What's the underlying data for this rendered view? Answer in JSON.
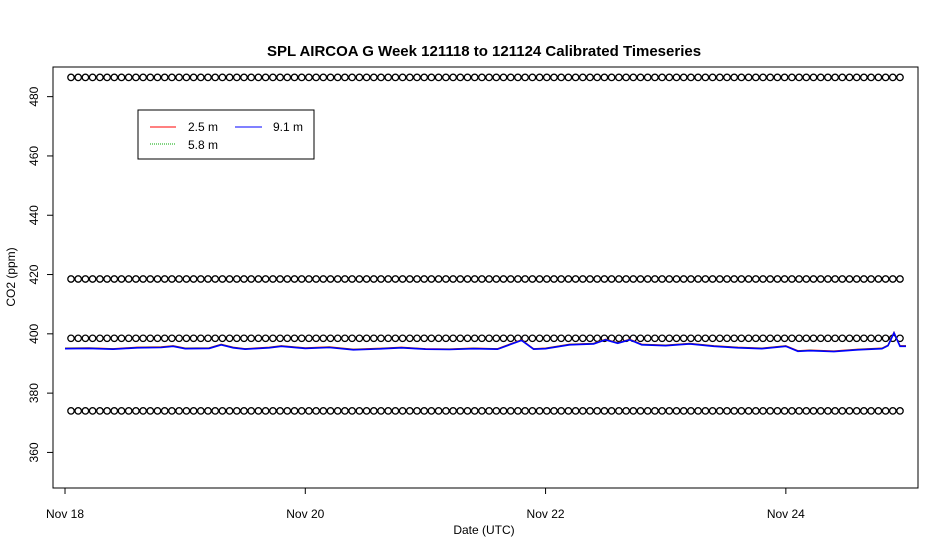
{
  "chart_data": {
    "type": "line",
    "title": "SPL AIRCOA G  Week 121118 to 121124  Calibrated Timeseries",
    "xlabel": "Date (UTC)",
    "ylabel": "CO2 (ppm)",
    "x_unit": "days since Nov 18 00:00 UTC",
    "xlim": [
      -0.1,
      7.1
    ],
    "ylim": [
      348,
      490
    ],
    "x_ticks": [
      0,
      2,
      4,
      6
    ],
    "x_tick_labels": [
      "Nov 18",
      "Nov 20",
      "Nov 22",
      "Nov 24"
    ],
    "y_ticks": [
      360,
      380,
      400,
      420,
      440,
      460,
      480
    ],
    "y_tick_labels": [
      "360",
      "380",
      "400",
      "420",
      "440",
      "460",
      "480"
    ],
    "grid": false,
    "legend_position": "top-left",
    "legend": [
      {
        "label": "2.5 m",
        "color": "#ff0000"
      },
      {
        "label": "5.8 m",
        "color": "#00aa00"
      },
      {
        "label": "9.1 m",
        "color": "#0000ff"
      }
    ],
    "calibration_levels_ppm": [
      374,
      398.5,
      418.5,
      486.5
    ],
    "calibration_marker": "open-circle",
    "calibration_start_day": 0.05,
    "calibration_end_day": 7.0,
    "calibration_interval_day": 0.06,
    "series": [
      {
        "name": "2.5 m",
        "color": "#ff0000",
        "x": [
          0.0,
          0.2,
          0.4,
          0.6,
          0.8,
          0.9,
          1.0,
          1.2,
          1.3,
          1.4,
          1.5,
          1.7,
          1.8,
          2.0,
          2.2,
          2.4,
          2.6,
          2.8,
          3.0,
          3.2,
          3.4,
          3.6,
          3.7,
          3.8,
          3.9,
          4.0,
          4.2,
          4.4,
          4.5,
          4.6,
          4.7,
          4.8,
          5.0,
          5.2,
          5.4,
          5.6,
          5.8,
          6.0,
          6.1,
          6.2,
          6.4,
          6.6,
          6.8,
          6.85,
          6.9,
          6.95,
          7.0
        ],
        "y": [
          395.2,
          395.3,
          395.0,
          395.5,
          395.6,
          396.0,
          395.2,
          395.3,
          396.5,
          395.5,
          395.0,
          395.5,
          396.0,
          395.3,
          395.6,
          394.8,
          395.1,
          395.5,
          395.0,
          394.9,
          395.2,
          395.0,
          396.5,
          398.0,
          395.0,
          395.2,
          396.5,
          396.8,
          398.2,
          397.0,
          398.2,
          396.5,
          396.2,
          396.8,
          396.0,
          395.5,
          395.2,
          396.0,
          394.3,
          394.5,
          394.2,
          394.8,
          395.2,
          396.2,
          400.5,
          396.0,
          396.0
        ]
      },
      {
        "name": "5.8 m",
        "color": "#00aa00",
        "x": [
          0.0,
          0.2,
          0.4,
          0.6,
          0.8,
          0.9,
          1.0,
          1.2,
          1.3,
          1.4,
          1.5,
          1.7,
          1.8,
          2.0,
          2.2,
          2.4,
          2.6,
          2.8,
          3.0,
          3.2,
          3.4,
          3.6,
          3.7,
          3.8,
          3.9,
          4.0,
          4.2,
          4.4,
          4.5,
          4.6,
          4.7,
          4.8,
          5.0,
          5.2,
          5.4,
          5.6,
          5.8,
          6.0,
          6.1,
          6.2,
          6.4,
          6.6,
          6.8,
          6.85,
          6.9,
          6.95,
          7.0
        ],
        "y": [
          395.1,
          395.2,
          394.9,
          395.4,
          395.5,
          395.9,
          395.1,
          395.2,
          396.4,
          395.4,
          394.9,
          395.4,
          395.9,
          395.2,
          395.5,
          394.7,
          395.0,
          395.4,
          394.9,
          394.8,
          395.1,
          394.9,
          396.4,
          397.9,
          394.9,
          395.1,
          396.4,
          396.7,
          398.1,
          396.9,
          398.1,
          396.4,
          396.1,
          396.7,
          395.9,
          395.4,
          395.1,
          395.9,
          394.2,
          394.4,
          394.1,
          394.7,
          395.1,
          396.1,
          400.4,
          395.9,
          395.9
        ]
      },
      {
        "name": "9.1 m",
        "color": "#0000ff",
        "x": [
          0.0,
          0.2,
          0.4,
          0.6,
          0.8,
          0.9,
          1.0,
          1.2,
          1.3,
          1.4,
          1.5,
          1.7,
          1.8,
          2.0,
          2.2,
          2.4,
          2.6,
          2.8,
          3.0,
          3.2,
          3.4,
          3.6,
          3.7,
          3.8,
          3.9,
          4.0,
          4.2,
          4.4,
          4.5,
          4.6,
          4.7,
          4.8,
          5.0,
          5.2,
          5.4,
          5.6,
          5.8,
          6.0,
          6.1,
          6.2,
          6.4,
          6.6,
          6.8,
          6.85,
          6.9,
          6.95,
          7.0
        ],
        "y": [
          395.0,
          395.1,
          394.8,
          395.3,
          395.4,
          395.8,
          395.0,
          395.1,
          396.3,
          395.3,
          394.8,
          395.3,
          395.8,
          395.1,
          395.4,
          394.6,
          394.9,
          395.3,
          394.8,
          394.7,
          395.0,
          394.8,
          396.3,
          397.8,
          394.8,
          395.0,
          396.3,
          396.6,
          398.0,
          396.8,
          398.0,
          396.3,
          396.0,
          396.6,
          395.8,
          395.3,
          395.0,
          395.8,
          394.1,
          394.3,
          394.0,
          394.6,
          395.0,
          396.0,
          400.3,
          395.8,
          395.8
        ]
      }
    ]
  }
}
